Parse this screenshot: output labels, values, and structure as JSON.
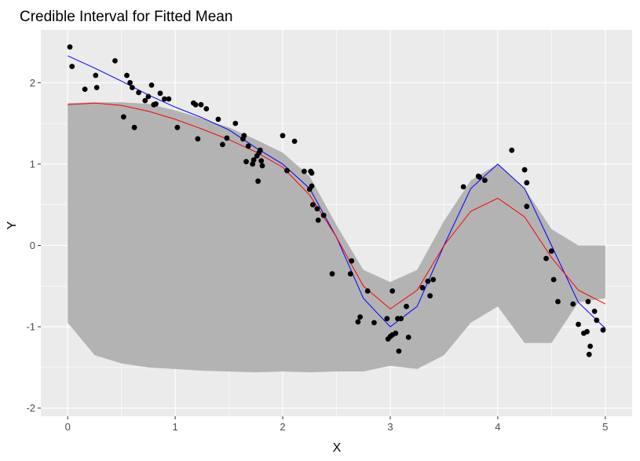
{
  "chart_data": {
    "type": "scatter",
    "title": "Credible Interval for Fitted Mean",
    "xlabel": "X",
    "ylabel": "Y",
    "xlim": [
      -0.25,
      5.25
    ],
    "ylim": [
      -2.1,
      2.65
    ],
    "x_ticks": [
      0,
      1,
      2,
      3,
      4,
      5
    ],
    "y_ticks": [
      -2,
      -1,
      0,
      1,
      2
    ],
    "x_tick_labels": [
      "0",
      "1",
      "2",
      "3",
      "4",
      "5"
    ],
    "y_tick_labels": [
      "-2",
      "-1",
      "0",
      "1",
      "2"
    ],
    "grid": true,
    "background_color": "#ebebeb",
    "colors": {
      "band": "#b3b3b3",
      "points": "#000000",
      "true_mean": "#0000ff",
      "fitted_mean": "#ff0000"
    },
    "band": {
      "x": [
        0,
        0.25,
        0.5,
        0.75,
        1,
        1.25,
        1.5,
        1.75,
        2,
        2.25,
        2.5,
        2.75,
        3,
        3.25,
        3.5,
        3.75,
        4,
        4.25,
        4.5,
        4.75,
        5
      ],
      "upper": [
        1.75,
        1.76,
        1.76,
        1.74,
        1.66,
        1.56,
        1.45,
        1.3,
        1.14,
        0.85,
        0.25,
        -0.3,
        -0.45,
        -0.3,
        0.3,
        0.8,
        1.0,
        0.7,
        0.2,
        0.0,
        0.0
      ],
      "lower": [
        -0.95,
        -1.35,
        -1.45,
        -1.5,
        -1.52,
        -1.54,
        -1.55,
        -1.56,
        -1.55,
        -1.56,
        -1.55,
        -1.55,
        -1.48,
        -1.52,
        -1.35,
        -0.95,
        -0.75,
        -1.2,
        -1.2,
        -0.7,
        -0.65
      ]
    },
    "points": [
      [
        0.02,
        2.44
      ],
      [
        0.04,
        2.2
      ],
      [
        0.16,
        1.92
      ],
      [
        0.26,
        2.09
      ],
      [
        0.27,
        1.94
      ],
      [
        0.44,
        2.27
      ],
      [
        0.52,
        1.58
      ],
      [
        0.55,
        2.09
      ],
      [
        0.58,
        2.0
      ],
      [
        0.6,
        1.94
      ],
      [
        0.62,
        1.45
      ],
      [
        0.66,
        1.88
      ],
      [
        0.72,
        1.78
      ],
      [
        0.75,
        1.83
      ],
      [
        0.78,
        1.97
      ],
      [
        0.8,
        1.73
      ],
      [
        0.82,
        1.74
      ],
      [
        0.86,
        1.87
      ],
      [
        0.9,
        1.8
      ],
      [
        0.94,
        1.8
      ],
      [
        1.02,
        1.45
      ],
      [
        1.17,
        1.75
      ],
      [
        1.19,
        1.73
      ],
      [
        1.21,
        1.31
      ],
      [
        1.24,
        1.73
      ],
      [
        1.29,
        1.68
      ],
      [
        1.4,
        1.55
      ],
      [
        1.44,
        1.24
      ],
      [
        1.48,
        1.32
      ],
      [
        1.56,
        1.5
      ],
      [
        1.63,
        1.31
      ],
      [
        1.64,
        1.35
      ],
      [
        1.66,
        1.03
      ],
      [
        1.68,
        1.22
      ],
      [
        1.72,
        1.0
      ],
      [
        1.73,
        1.05
      ],
      [
        1.76,
        1.1
      ],
      [
        1.77,
        0.79
      ],
      [
        1.78,
        1.14
      ],
      [
        1.79,
        1.17
      ],
      [
        1.8,
        1.04
      ],
      [
        1.81,
        0.98
      ],
      [
        2.0,
        1.35
      ],
      [
        2.04,
        0.92
      ],
      [
        2.11,
        1.28
      ],
      [
        2.2,
        0.91
      ],
      [
        2.25,
        0.69
      ],
      [
        2.26,
        0.91
      ],
      [
        2.27,
        0.89
      ],
      [
        2.27,
        0.73
      ],
      [
        2.28,
        0.5
      ],
      [
        2.32,
        0.45
      ],
      [
        2.33,
        0.31
      ],
      [
        2.38,
        0.37
      ],
      [
        2.46,
        -0.35
      ],
      [
        2.63,
        -0.35
      ],
      [
        2.64,
        -0.19
      ],
      [
        2.7,
        -0.94
      ],
      [
        2.72,
        -0.88
      ],
      [
        2.79,
        -0.56
      ],
      [
        2.85,
        -0.95
      ],
      [
        2.97,
        -0.9
      ],
      [
        2.98,
        -1.15
      ],
      [
        3.0,
        -1.12
      ],
      [
        3.02,
        -1.1
      ],
      [
        3.02,
        -0.56
      ],
      [
        3.05,
        -1.08
      ],
      [
        3.07,
        -0.9
      ],
      [
        3.08,
        -1.3
      ],
      [
        3.1,
        -0.9
      ],
      [
        3.15,
        -0.75
      ],
      [
        3.17,
        -1.13
      ],
      [
        3.3,
        -0.52
      ],
      [
        3.35,
        -0.44
      ],
      [
        3.37,
        -0.62
      ],
      [
        3.4,
        -0.42
      ],
      [
        3.68,
        0.72
      ],
      [
        3.82,
        0.85
      ],
      [
        3.83,
        0.84
      ],
      [
        3.88,
        0.8
      ],
      [
        4.13,
        1.17
      ],
      [
        4.25,
        0.93
      ],
      [
        4.27,
        0.77
      ],
      [
        4.27,
        0.48
      ],
      [
        4.45,
        -0.16
      ],
      [
        4.5,
        -0.07
      ],
      [
        4.52,
        -0.42
      ],
      [
        4.56,
        -0.69
      ],
      [
        4.7,
        -0.72
      ],
      [
        4.75,
        -0.97
      ],
      [
        4.8,
        -1.08
      ],
      [
        4.83,
        -1.06
      ],
      [
        4.84,
        -0.69
      ],
      [
        4.85,
        -1.34
      ],
      [
        4.86,
        -1.24
      ],
      [
        4.9,
        -0.81
      ],
      [
        4.92,
        -0.92
      ],
      [
        4.98,
        -1.04
      ]
    ],
    "series": [
      {
        "x": [
          0,
          0.25,
          0.5,
          0.75,
          1,
          1.25,
          1.5,
          1.75,
          2,
          2.25,
          2.5,
          2.75,
          3,
          3.25,
          3.5,
          3.75,
          4,
          4.25,
          4.5,
          4.75,
          5
        ],
        "values": [
          2.33,
          2.18,
          2.02,
          1.85,
          1.7,
          1.57,
          1.42,
          1.2,
          1.0,
          0.7,
          0.1,
          -0.65,
          -1.0,
          -0.75,
          0.0,
          0.7,
          1.0,
          0.7,
          0.0,
          -0.7,
          -1.02
        ]
      },
      {
        "x": [
          0,
          0.25,
          0.5,
          0.75,
          1,
          1.25,
          1.5,
          1.75,
          2,
          2.25,
          2.5,
          2.75,
          3,
          3.25,
          3.5,
          3.75,
          4,
          4.25,
          4.5,
          4.75,
          5
        ],
        "values": [
          1.73,
          1.75,
          1.72,
          1.65,
          1.55,
          1.43,
          1.3,
          1.15,
          0.96,
          0.62,
          0.1,
          -0.5,
          -0.78,
          -0.55,
          0.0,
          0.42,
          0.58,
          0.35,
          -0.15,
          -0.55,
          -0.72
        ]
      }
    ]
  }
}
